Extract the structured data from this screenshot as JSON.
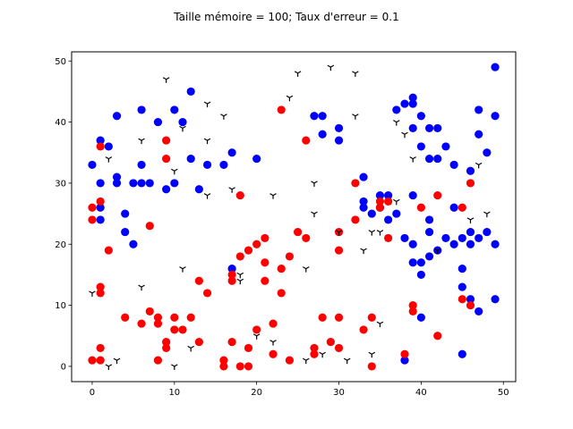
{
  "chart_data": {
    "type": "scatter",
    "title": "Taille mémoire = 100; Taux d'erreur = 0.1",
    "xlabel": "",
    "ylabel": "",
    "xlim": [
      -2.5,
      51.5
    ],
    "ylim": [
      -2.5,
      51.5
    ],
    "xticks": [
      0,
      10,
      20,
      30,
      40,
      50
    ],
    "yticks": [
      0,
      10,
      20,
      30,
      40,
      50
    ],
    "grid": false,
    "series": [
      {
        "color": "#0000ff",
        "marker": "circle",
        "points": [
          [
            0,
            33
          ],
          [
            1,
            37
          ],
          [
            1,
            30
          ],
          [
            1,
            26
          ],
          [
            1,
            24
          ],
          [
            2,
            36
          ],
          [
            3,
            41
          ],
          [
            3,
            31
          ],
          [
            3,
            30
          ],
          [
            4,
            25
          ],
          [
            4,
            22
          ],
          [
            5,
            30
          ],
          [
            5,
            20
          ],
          [
            6,
            42
          ],
          [
            6,
            33
          ],
          [
            6,
            30
          ],
          [
            7,
            30
          ],
          [
            8,
            40
          ],
          [
            9,
            29
          ],
          [
            10,
            42
          ],
          [
            10,
            30
          ],
          [
            11,
            40
          ],
          [
            12,
            45
          ],
          [
            12,
            34
          ],
          [
            13,
            29
          ],
          [
            14,
            33
          ],
          [
            16,
            33
          ],
          [
            17,
            35
          ],
          [
            17,
            16
          ],
          [
            20,
            34
          ],
          [
            27,
            41
          ],
          [
            28,
            41
          ],
          [
            28,
            38
          ],
          [
            30,
            39
          ],
          [
            30,
            37
          ],
          [
            33,
            31
          ],
          [
            33,
            27
          ],
          [
            33,
            26
          ],
          [
            34,
            25
          ],
          [
            35,
            28
          ],
          [
            35,
            26
          ],
          [
            36,
            28
          ],
          [
            36,
            24
          ],
          [
            37,
            42
          ],
          [
            37,
            25
          ],
          [
            38,
            43
          ],
          [
            38,
            21
          ],
          [
            38,
            1
          ],
          [
            39,
            44
          ],
          [
            39,
            43
          ],
          [
            39,
            39
          ],
          [
            39,
            28
          ],
          [
            39,
            20
          ],
          [
            39,
            17
          ],
          [
            40,
            41
          ],
          [
            40,
            36
          ],
          [
            40,
            17
          ],
          [
            40,
            15
          ],
          [
            40,
            8
          ],
          [
            41,
            39
          ],
          [
            41,
            34
          ],
          [
            41,
            24
          ],
          [
            41,
            22
          ],
          [
            41,
            18
          ],
          [
            42,
            39
          ],
          [
            42,
            34
          ],
          [
            42,
            19
          ],
          [
            43,
            36
          ],
          [
            43,
            21
          ],
          [
            44,
            33
          ],
          [
            44,
            26
          ],
          [
            44,
            20
          ],
          [
            45,
            21
          ],
          [
            45,
            16
          ],
          [
            45,
            13
          ],
          [
            45,
            2
          ],
          [
            46,
            32
          ],
          [
            46,
            22
          ],
          [
            46,
            20
          ],
          [
            46,
            11
          ],
          [
            47,
            42
          ],
          [
            47,
            38
          ],
          [
            47,
            21
          ],
          [
            47,
            9
          ],
          [
            48,
            35
          ],
          [
            48,
            22
          ],
          [
            49,
            49
          ],
          [
            49,
            41
          ],
          [
            49,
            20
          ],
          [
            49,
            11
          ]
        ]
      },
      {
        "color": "#ff0000",
        "marker": "circle",
        "points": [
          [
            0,
            26
          ],
          [
            0,
            24
          ],
          [
            0,
            1
          ],
          [
            1,
            36
          ],
          [
            1,
            27
          ],
          [
            1,
            13
          ],
          [
            1,
            12
          ],
          [
            1,
            3
          ],
          [
            1,
            1
          ],
          [
            2,
            19
          ],
          [
            4,
            8
          ],
          [
            6,
            7
          ],
          [
            7,
            23
          ],
          [
            7,
            9
          ],
          [
            8,
            8
          ],
          [
            8,
            7
          ],
          [
            8,
            1
          ],
          [
            9,
            37
          ],
          [
            9,
            34
          ],
          [
            9,
            4
          ],
          [
            9,
            3
          ],
          [
            10,
            8
          ],
          [
            10,
            6
          ],
          [
            11,
            6
          ],
          [
            12,
            8
          ],
          [
            13,
            14
          ],
          [
            13,
            4
          ],
          [
            14,
            12
          ],
          [
            16,
            1
          ],
          [
            16,
            0
          ],
          [
            17,
            15
          ],
          [
            17,
            14
          ],
          [
            17,
            4
          ],
          [
            18,
            28
          ],
          [
            18,
            18
          ],
          [
            18,
            0
          ],
          [
            19,
            19
          ],
          [
            19,
            3
          ],
          [
            19,
            0
          ],
          [
            20,
            20
          ],
          [
            20,
            6
          ],
          [
            21,
            21
          ],
          [
            21,
            17
          ],
          [
            21,
            14
          ],
          [
            22,
            7
          ],
          [
            22,
            2
          ],
          [
            23,
            42
          ],
          [
            23,
            16
          ],
          [
            23,
            12
          ],
          [
            24,
            18
          ],
          [
            24,
            1
          ],
          [
            25,
            22
          ],
          [
            26,
            37
          ],
          [
            26,
            21
          ],
          [
            27,
            3
          ],
          [
            27,
            2
          ],
          [
            28,
            8
          ],
          [
            29,
            4
          ],
          [
            30,
            22
          ],
          [
            30,
            19
          ],
          [
            30,
            8
          ],
          [
            30,
            3
          ],
          [
            32,
            30
          ],
          [
            32,
            24
          ],
          [
            33,
            6
          ],
          [
            34,
            8
          ],
          [
            34,
            0
          ],
          [
            35,
            27
          ],
          [
            35,
            26
          ],
          [
            36,
            27
          ],
          [
            36,
            21
          ],
          [
            38,
            2
          ],
          [
            39,
            10
          ],
          [
            39,
            9
          ],
          [
            40,
            26
          ],
          [
            42,
            28
          ],
          [
            42,
            5
          ],
          [
            45,
            26
          ],
          [
            45,
            11
          ],
          [
            46,
            30
          ],
          [
            46,
            10
          ]
        ]
      },
      {
        "color": "#000000",
        "marker": "tri_down",
        "points": [
          [
            0,
            12
          ],
          [
            2,
            34
          ],
          [
            2,
            0
          ],
          [
            3,
            1
          ],
          [
            6,
            37
          ],
          [
            6,
            13
          ],
          [
            9,
            47
          ],
          [
            10,
            32
          ],
          [
            10,
            0
          ],
          [
            11,
            39
          ],
          [
            11,
            16
          ],
          [
            12,
            3
          ],
          [
            14,
            43
          ],
          [
            14,
            37
          ],
          [
            14,
            28
          ],
          [
            16,
            41
          ],
          [
            17,
            29
          ],
          [
            18,
            15
          ],
          [
            18,
            14
          ],
          [
            20,
            5
          ],
          [
            22,
            28
          ],
          [
            22,
            4
          ],
          [
            24,
            44
          ],
          [
            25,
            48
          ],
          [
            26,
            16
          ],
          [
            26,
            1
          ],
          [
            27,
            30
          ],
          [
            27,
            25
          ],
          [
            28,
            2
          ],
          [
            29,
            49
          ],
          [
            30,
            22
          ],
          [
            31,
            1
          ],
          [
            32,
            48
          ],
          [
            32,
            41
          ],
          [
            33,
            19
          ],
          [
            34,
            22
          ],
          [
            34,
            2
          ],
          [
            35,
            22
          ],
          [
            35,
            7
          ],
          [
            37,
            40
          ],
          [
            37,
            27
          ],
          [
            38,
            38
          ],
          [
            39,
            34
          ],
          [
            42,
            19
          ],
          [
            46,
            24
          ],
          [
            47,
            33
          ],
          [
            48,
            25
          ]
        ]
      }
    ]
  }
}
